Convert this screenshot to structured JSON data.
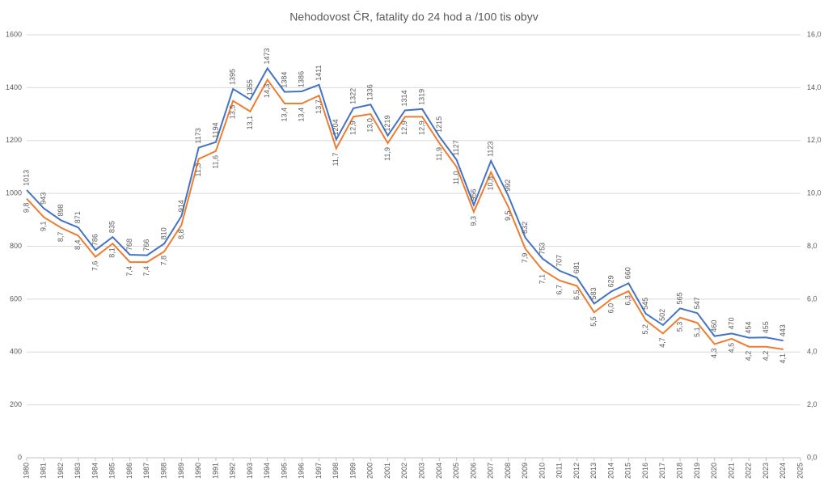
{
  "chart_data": {
    "type": "line",
    "title": "Nehodovost ČR, fatality do 24 hod a /100 tis obyv",
    "x": [
      1980,
      1981,
      1982,
      1983,
      1984,
      1985,
      1986,
      1987,
      1988,
      1989,
      1990,
      1991,
      1992,
      1993,
      1994,
      1995,
      1996,
      1997,
      1998,
      1999,
      2000,
      2001,
      2002,
      2003,
      2004,
      2005,
      2006,
      2007,
      2008,
      2009,
      2010,
      2011,
      2012,
      2013,
      2014,
      2015,
      2016,
      2017,
      2018,
      2019,
      2020,
      2021,
      2022,
      2023,
      2024
    ],
    "xlim": [
      1980,
      2025
    ],
    "xticks": [
      1980,
      1981,
      1982,
      1983,
      1984,
      1985,
      1986,
      1987,
      1988,
      1989,
      1990,
      1991,
      1992,
      1993,
      1994,
      1995,
      1996,
      1997,
      1998,
      1999,
      2000,
      2001,
      2002,
      2003,
      2004,
      2005,
      2006,
      2007,
      2008,
      2009,
      2010,
      2011,
      2012,
      2013,
      2014,
      2015,
      2016,
      2017,
      2018,
      2019,
      2020,
      2021,
      2022,
      2023,
      2024,
      2025
    ],
    "ylim": [
      0,
      1600
    ],
    "yticks": [
      0,
      200,
      400,
      600,
      800,
      1000,
      1200,
      1400,
      1600
    ],
    "y2lim": [
      0,
      16
    ],
    "y2ticks": [
      {
        "value": 0,
        "label": "0,0"
      },
      {
        "value": 2,
        "label": "2,0"
      },
      {
        "value": 4,
        "label": "4,0"
      },
      {
        "value": 6,
        "label": "6,0"
      },
      {
        "value": 8,
        "label": "8,0"
      },
      {
        "value": 10,
        "label": "10,0"
      },
      {
        "value": 12,
        "label": "12,0"
      },
      {
        "value": 14,
        "label": "14,0"
      },
      {
        "value": 16,
        "label": "16,0"
      }
    ],
    "grid": true,
    "series": [
      {
        "color": "#4472c4",
        "values": [
          1013,
          943,
          898,
          871,
          786,
          835,
          768,
          766,
          810,
          914,
          1173,
          1194,
          1395,
          1355,
          1473,
          1384,
          1386,
          1411,
          1204,
          1322,
          1336,
          1219,
          1314,
          1319,
          1215,
          1127,
          956,
          1123,
          992,
          832,
          753,
          707,
          681,
          583,
          629,
          660,
          545,
          502,
          565,
          547,
          460,
          470,
          454,
          455,
          443
        ]
      },
      {
        "color": "#ed7d31",
        "axis": "y2",
        "values": [
          9.8,
          9.1,
          8.7,
          8.4,
          7.6,
          8.1,
          7.4,
          7.4,
          7.8,
          8.8,
          11.3,
          11.6,
          13.5,
          13.1,
          14.3,
          13.4,
          13.4,
          13.7,
          11.7,
          12.9,
          13.0,
          11.9,
          12.9,
          12.9,
          11.9,
          11.0,
          9.3,
          10.8,
          9.5,
          7.9,
          7.1,
          6.7,
          6.5,
          5.5,
          6.0,
          6.3,
          5.2,
          4.7,
          5.3,
          5.1,
          4.3,
          4.5,
          4.2,
          4.2,
          4.1
        ],
        "value_labels": [
          "9,8",
          "9,1",
          "8,7",
          "8,4",
          "7,6",
          "8,1",
          "7,4",
          "7,4",
          "7,8",
          "8,8",
          "11,3",
          "11,6",
          "13,5",
          "13,1",
          "14,3",
          "13,4",
          "13,4",
          "13,7",
          "11,7",
          "12,9",
          "13,0",
          "11,9",
          "12,9",
          "12,9",
          "11,9",
          "11,0",
          "9,3",
          "10,8",
          "9,5",
          "7,9",
          "7,1",
          "6,7",
          "6,5",
          "5,5",
          "6,0",
          "6,3",
          "5,2",
          "4,7",
          "5,3",
          "5,1",
          "4,3",
          "4,5",
          "4,2",
          "4,2",
          "4,1"
        ]
      }
    ]
  }
}
